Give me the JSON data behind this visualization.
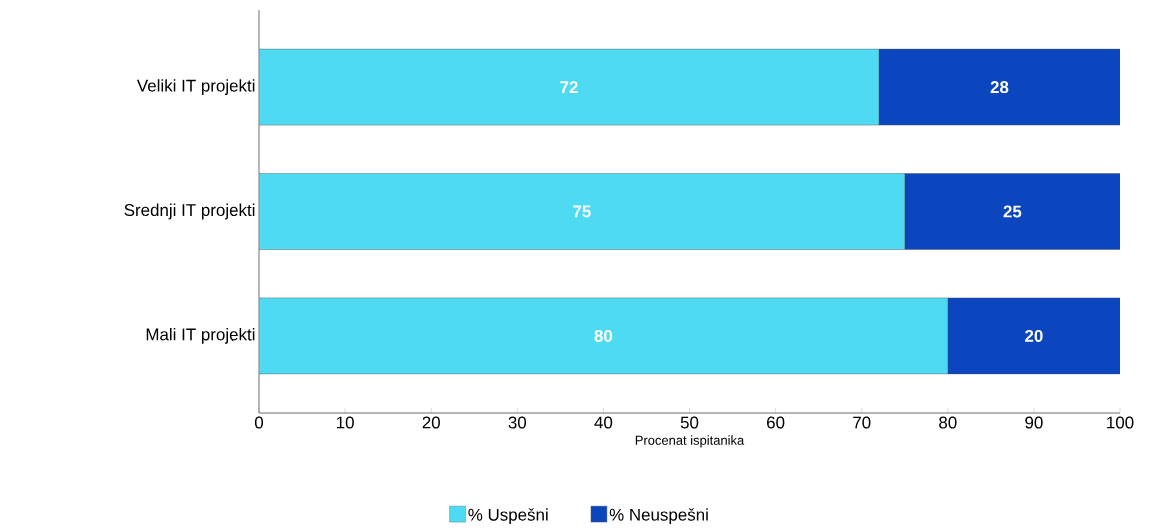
{
  "chart_data": {
    "type": "bar",
    "orientation": "horizontal",
    "stacked": true,
    "data_labels": true,
    "categories": [
      "Veliki IT projekti",
      "Srednji IT projekti",
      "Mali IT projekti"
    ],
    "series": [
      {
        "name": "% Uspešni",
        "color": "#4fdaf3",
        "values": [
          72,
          75,
          80
        ]
      },
      {
        "name": "% Neuspešni",
        "color": "#0b46bf",
        "values": [
          28,
          25,
          20
        ]
      }
    ],
    "xlabel": "Procenat ispitanika",
    "xlim": [
      0,
      100
    ],
    "xticks": [
      0,
      10,
      20,
      30,
      40,
      50,
      60,
      70,
      80,
      90,
      100
    ],
    "legend": "bottom",
    "grid": false
  }
}
